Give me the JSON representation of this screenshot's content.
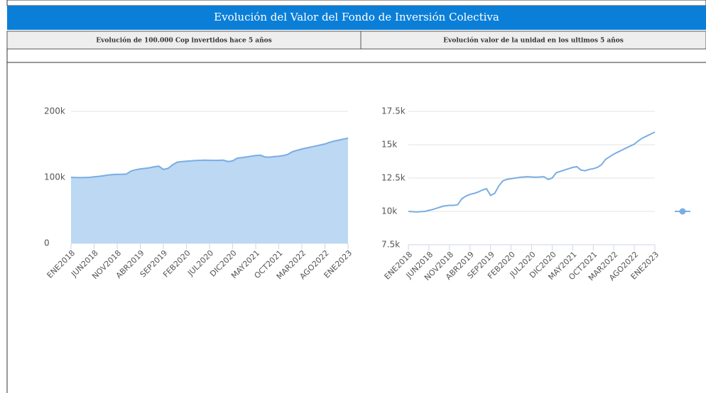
{
  "header": {
    "title": "Evolución del Valor del Fondo de Inversión Colectiva",
    "columns": [
      "Evolución de 100.000 Cop invertidos hace 5 años",
      "Evolución valor de la unidad en los ultimos 5 años"
    ]
  },
  "chart_data": [
    {
      "type": "area",
      "color": "#7aade3",
      "fill": "#bcd8f3",
      "grid": true,
      "categories": [
        "ENE2018",
        null,
        null,
        null,
        null,
        "JUN2018",
        null,
        null,
        null,
        null,
        "NOV2018",
        null,
        null,
        null,
        null,
        "ABR2019",
        null,
        null,
        null,
        null,
        "SEP2019",
        null,
        null,
        null,
        null,
        "FEB2020",
        null,
        null,
        null,
        null,
        "JUL2020",
        null,
        null,
        null,
        null,
        "DIC2020",
        null,
        null,
        null,
        null,
        "MAY2021",
        null,
        null,
        null,
        null,
        "OCT2021",
        null,
        null,
        null,
        null,
        "MAR2022",
        null,
        null,
        null,
        null,
        "AGO2022",
        null,
        null,
        null,
        null,
        "ENE2023"
      ],
      "values": [
        100000,
        99800,
        99600,
        99800,
        100000,
        100800,
        101500,
        102500,
        103500,
        104200,
        104500,
        104500,
        105000,
        109500,
        111500,
        112800,
        113500,
        114500,
        116000,
        117000,
        112000,
        113500,
        119000,
        123000,
        124000,
        124500,
        125000,
        125500,
        125800,
        126000,
        125800,
        125700,
        125800,
        126000,
        124000,
        125000,
        129000,
        130000,
        131000,
        132000,
        133000,
        133500,
        131000,
        130500,
        131500,
        132000,
        133000,
        135000,
        139000,
        141000,
        143000,
        144500,
        146000,
        147500,
        149000,
        150500,
        153000,
        155000,
        156500,
        158000,
        159500
      ],
      "ylim": [
        0,
        200000
      ],
      "yticks": [
        0,
        {
          "value": 100000,
          "label": "100k"
        },
        {
          "value": 200000,
          "label": "200k"
        }
      ]
    },
    {
      "type": "line",
      "color": "#7aade3",
      "grid": true,
      "categories": [
        "ENE2018",
        null,
        null,
        null,
        null,
        "JUN2018",
        null,
        null,
        null,
        null,
        "NOV2018",
        null,
        null,
        null,
        null,
        "ABR2019",
        null,
        null,
        null,
        null,
        "SEP2019",
        null,
        null,
        null,
        null,
        "FEB2020",
        null,
        null,
        null,
        null,
        "JUL2020",
        null,
        null,
        null,
        null,
        "DIC2020",
        null,
        null,
        null,
        null,
        "MAY2021",
        null,
        null,
        null,
        null,
        "OCT2021",
        null,
        null,
        null,
        null,
        "MAR2022",
        null,
        null,
        null,
        null,
        "AGO2022",
        null,
        null,
        null,
        null,
        "ENE2023"
      ],
      "values": [
        10000,
        9980,
        9960,
        9980,
        10000,
        10080,
        10150,
        10250,
        10350,
        10420,
        10450,
        10450,
        10500,
        10950,
        11150,
        11280,
        11350,
        11450,
        11600,
        11700,
        11200,
        11350,
        11900,
        12300,
        12400,
        12450,
        12500,
        12550,
        12580,
        12600,
        12580,
        12570,
        12580,
        12600,
        12400,
        12500,
        12900,
        13000,
        13100,
        13200,
        13300,
        13350,
        13100,
        13050,
        13150,
        13200,
        13300,
        13500,
        13900,
        14100,
        14300,
        14450,
        14600,
        14750,
        14900,
        15050,
        15300,
        15500,
        15650,
        15800,
        15950
      ],
      "ylim": [
        7500,
        17500
      ],
      "yticks": [
        {
          "value": 7500,
          "label": "7.5k"
        },
        {
          "value": 10000,
          "label": "10k"
        },
        {
          "value": 12500,
          "label": "12.5k"
        },
        {
          "value": 15000,
          "label": "15k"
        },
        {
          "value": 17500,
          "label": "17.5k"
        }
      ]
    }
  ]
}
